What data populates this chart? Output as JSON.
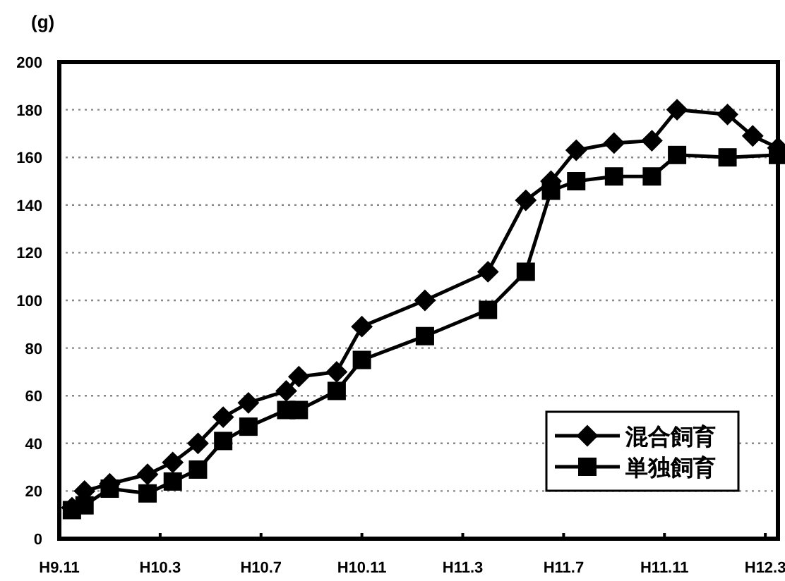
{
  "chart_data": {
    "type": "line",
    "ylabel": "(g)",
    "categories": [
      "H9.11",
      null,
      null,
      null,
      null,
      null,
      null,
      null,
      "H10.3",
      null,
      null,
      null,
      null,
      null,
      null,
      null,
      "H10.7",
      null,
      null,
      null,
      null,
      null,
      null,
      null,
      "H10.11",
      null,
      null,
      null,
      null,
      null,
      null,
      null,
      "H11.3",
      null,
      null,
      null,
      null,
      null,
      null,
      null,
      "H11.7",
      null,
      null,
      null,
      null,
      null,
      null,
      null,
      "H11.11",
      null,
      null,
      null,
      null,
      null,
      null,
      null,
      "H12.3",
      null
    ],
    "ylim": [
      0,
      200
    ],
    "yticks": [
      0,
      20,
      40,
      60,
      80,
      100,
      120,
      140,
      160,
      180,
      200
    ],
    "grid": "y",
    "legend": "bottom right",
    "series": [
      {
        "name": "混合飼育",
        "color": "#000000",
        "marker": "diamond",
        "values": [
          null,
          13,
          20,
          null,
          23,
          null,
          null,
          27,
          null,
          32,
          null,
          40,
          null,
          51,
          null,
          57,
          null,
          null,
          62,
          68,
          null,
          null,
          70,
          null,
          89,
          null,
          null,
          null,
          null,
          100,
          null,
          null,
          null,
          null,
          112,
          null,
          null,
          142,
          null,
          150,
          null,
          163,
          null,
          null,
          166,
          null,
          null,
          167,
          null,
          180,
          null,
          null,
          null,
          178,
          null,
          169,
          null,
          164
        ]
      },
      {
        "name": "単独飼育",
        "color": "#000000",
        "marker": "square",
        "values": [
          null,
          12,
          14,
          null,
          21,
          null,
          null,
          19,
          null,
          24,
          null,
          29,
          null,
          41,
          null,
          47,
          null,
          null,
          54,
          54,
          null,
          null,
          62,
          null,
          75,
          null,
          null,
          null,
          null,
          85,
          null,
          null,
          null,
          null,
          96,
          null,
          null,
          112,
          null,
          146,
          null,
          150,
          null,
          null,
          152,
          null,
          null,
          152,
          null,
          161,
          null,
          null,
          null,
          160,
          null,
          null,
          null,
          161
        ]
      }
    ]
  }
}
